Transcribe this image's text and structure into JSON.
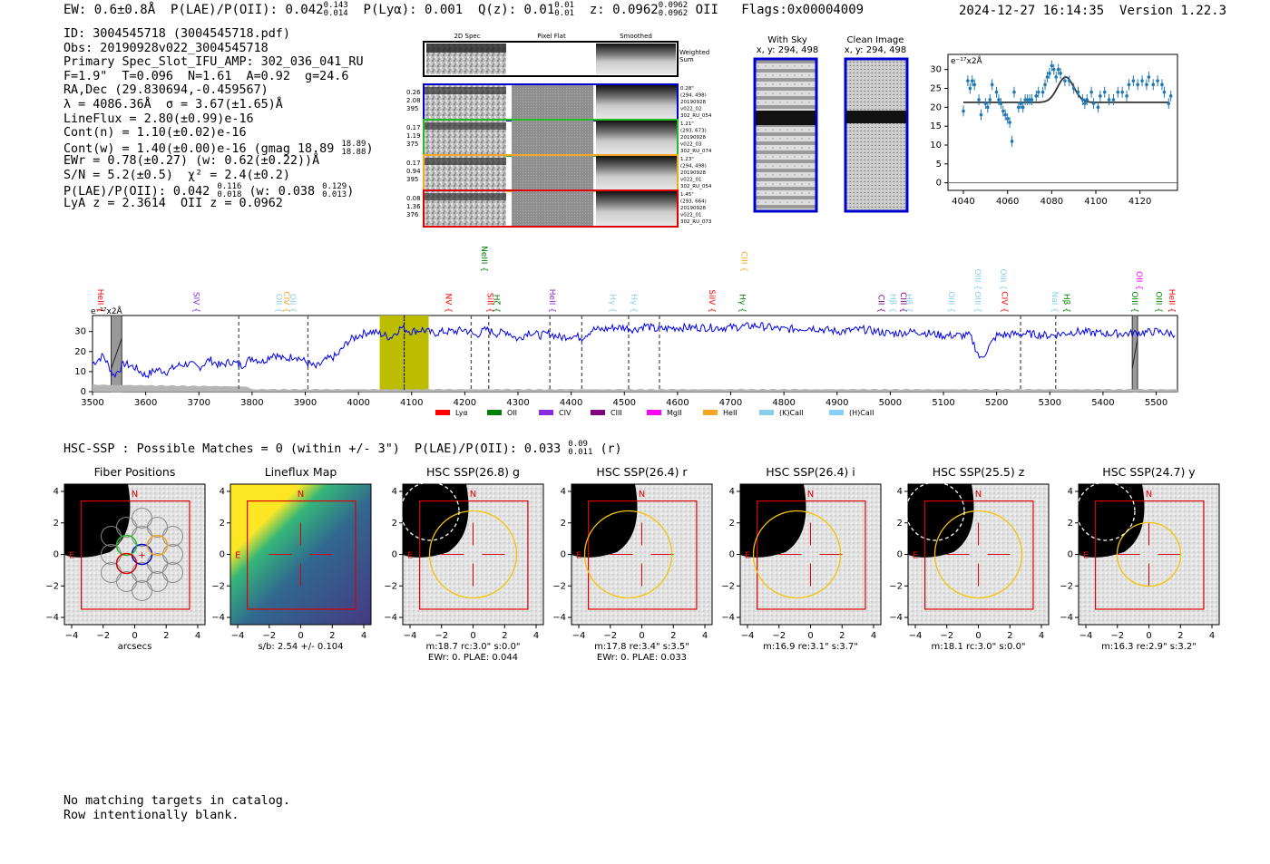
{
  "header": {
    "ew": "EW: 0.6±0.8Å",
    "plae_label": "P(LAE)/P(OII): 0.042",
    "plae_hi": "0.143",
    "plae_lo": "0.014",
    "plya": "P(Lyα): 0.001",
    "qz_label": "Q(z): 0.01",
    "qz_hi": "0.01",
    "qz_lo": "0.01",
    "z_label": "z: 0.0962",
    "z_hi": "0.0962",
    "z_lo": "0.0962",
    "z_line": "OII",
    "flags": "Flags:0x00004009",
    "datetime": "2024-12-27 16:14:35",
    "version": "Version 1.22.3"
  },
  "info": {
    "id": "ID: 3004545718 (3004545718.pdf)",
    "obs": "Obs: 20190928v022_3004545718",
    "primary": "Primary Spec_Slot_IFU_AMP: 302_036_041_RU",
    "params": "F=1.9\"  T=0.096  N=1.61  A=0.92  g=24.6",
    "radec": "RA,Dec (29.830694,-0.459567)",
    "lambda": "λ = 4086.36Å  σ = 3.67(±1.65)Å",
    "lineflux": "LineFlux = 2.80(±0.99)e-16",
    "contn": "Cont(n) = 1.10(±0.02)e-16",
    "contw": "Cont(w) = 1.40(±0.00)e-16 (gmag 18.89",
    "contw_hi": "18.89",
    "contw_lo": "18.88",
    "ewr": "EWr = 0.78(±0.27) (w: 0.62(±0.22))Å",
    "sn": "S/N = 5.2(±0.5)  χ² = 2.4(±0.2)",
    "plae": "P(LAE)/P(OII): 0.042",
    "plae_hi": "0.116",
    "plae_lo": "0.018",
    "plae_w": "(w: 0.038",
    "plae_w_hi": "0.129",
    "plae_w_lo": "0.013",
    "z": "LyA z = 2.3614  OII z = 0.0962"
  },
  "cutouts": {
    "col_2d": "2D Spec",
    "col_flat": "Pixel Flat",
    "col_smooth": "Smoothed",
    "weighted_sum": "Weighted\nSum",
    "rows": [
      {
        "v1": "0.26",
        "v2": "2.08",
        "v3": "395",
        "color": "#0000cc",
        "sep": "0.28\"",
        "xy": "(294, 498)",
        "date": "20190928",
        "shot": "v022_02",
        "amp": "302_RU_054"
      },
      {
        "v1": "0.17",
        "v2": "1.19",
        "v3": "375",
        "color": "#22bb22",
        "sep": "1.21\"",
        "xy": "(293, 673)",
        "date": "20190928",
        "shot": "v022_03",
        "amp": "302_RU_074"
      },
      {
        "v1": "0.17",
        "v2": "0.94",
        "v3": "395",
        "color": "#f5a623",
        "sep": "1.23\"",
        "xy": "(294, 498)",
        "date": "20190928",
        "shot": "v022_01",
        "amp": "302_RU_054"
      },
      {
        "v1": "0.08",
        "v2": "1.36",
        "v3": "376",
        "color": "#dd0000",
        "sep": "1.45\"",
        "xy": "(293, 664)",
        "date": "20190928",
        "shot": "v022_01",
        "amp": "302_RU_073"
      }
    ],
    "with_sky_title": "With Sky",
    "with_sky_xy": "x, y: 294, 498",
    "clean_title": "Clean Image",
    "clean_xy": "x, y: 294, 498"
  },
  "chart_data": [
    {
      "type": "scatter",
      "name": "zoom-fit",
      "ylabel": "e⁻¹⁷x2Å",
      "xlim": [
        4033,
        4137
      ],
      "ylim": [
        -2,
        34
      ],
      "xticks": [
        4040,
        4060,
        4080,
        4100,
        4120
      ],
      "yticks": [
        0,
        5,
        10,
        15,
        20,
        25,
        30
      ],
      "fit": {
        "continuum": 21.3,
        "center": 4086.36,
        "sigma": 3.67,
        "amplitude": 6.7,
        "range": [
          4040,
          4133
        ]
      },
      "points": [
        [
          4040,
          19
        ],
        [
          4042,
          27
        ],
        [
          4043,
          25
        ],
        [
          4044,
          27
        ],
        [
          4045,
          26
        ],
        [
          4047,
          22
        ],
        [
          4048,
          18
        ],
        [
          4050,
          21
        ],
        [
          4051,
          20
        ],
        [
          4052,
          22
        ],
        [
          4053,
          26
        ],
        [
          4055,
          24
        ],
        [
          4056,
          22
        ],
        [
          4057,
          21
        ],
        [
          4058,
          19
        ],
        [
          4059,
          18
        ],
        [
          4060,
          17
        ],
        [
          4061,
          16
        ],
        [
          4062,
          11
        ],
        [
          4063,
          24
        ],
        [
          4065,
          20
        ],
        [
          4066,
          21
        ],
        [
          4067,
          20
        ],
        [
          4068,
          22
        ],
        [
          4069,
          22
        ],
        [
          4070,
          22
        ],
        [
          4071,
          22
        ],
        [
          4073,
          23
        ],
        [
          4074,
          24
        ],
        [
          4076,
          24
        ],
        [
          4077,
          26
        ],
        [
          4078,
          28
        ],
        [
          4079,
          29
        ],
        [
          4080,
          31
        ],
        [
          4081,
          30
        ],
        [
          4082,
          28
        ],
        [
          4083,
          30
        ],
        [
          4084,
          29
        ],
        [
          4086,
          27
        ],
        [
          4088,
          27
        ],
        [
          4090,
          25
        ],
        [
          4092,
          24
        ],
        [
          4094,
          22
        ],
        [
          4095,
          21
        ],
        [
          4096,
          22
        ],
        [
          4098,
          24
        ],
        [
          4099,
          21
        ],
        [
          4101,
          20
        ],
        [
          4102,
          23
        ],
        [
          4104,
          24
        ],
        [
          4106,
          22
        ],
        [
          4108,
          22
        ],
        [
          4110,
          24
        ],
        [
          4112,
          24
        ],
        [
          4114,
          23
        ],
        [
          4115,
          26
        ],
        [
          4117,
          27
        ],
        [
          4119,
          26
        ],
        [
          4121,
          27
        ],
        [
          4123,
          26
        ],
        [
          4124,
          28
        ],
        [
          4126,
          26
        ],
        [
          4128,
          27
        ],
        [
          4130,
          26
        ],
        [
          4131,
          24
        ],
        [
          4133,
          21
        ],
        [
          4134,
          23
        ]
      ]
    },
    {
      "type": "line",
      "name": "full-spectrum",
      "ylabel": "e⁻¹⁷x2Å",
      "xlim": [
        3500,
        5540
      ],
      "ylim": [
        0,
        38
      ],
      "xticks": [
        3500,
        3600,
        3700,
        3800,
        3900,
        4000,
        4100,
        4200,
        4300,
        4400,
        4500,
        4600,
        4700,
        4800,
        4900,
        5000,
        5100,
        5200,
        5300,
        5400,
        5500
      ],
      "yticks": [
        0,
        10,
        20,
        30
      ],
      "highlight": [
        4040,
        4132
      ],
      "line_marker": 4086,
      "masked": [
        [
          3535,
          3555
        ],
        [
          5455,
          5465
        ]
      ],
      "anchors": [
        [
          3500,
          14
        ],
        [
          3520,
          18
        ],
        [
          3540,
          8
        ],
        [
          3560,
          14
        ],
        [
          3580,
          12
        ],
        [
          3600,
          8
        ],
        [
          3620,
          11
        ],
        [
          3640,
          10
        ],
        [
          3660,
          13
        ],
        [
          3680,
          14
        ],
        [
          3700,
          12
        ],
        [
          3720,
          16
        ],
        [
          3740,
          13
        ],
        [
          3760,
          15
        ],
        [
          3780,
          13
        ],
        [
          3800,
          17
        ],
        [
          3820,
          15
        ],
        [
          3840,
          19
        ],
        [
          3860,
          16
        ],
        [
          3880,
          18
        ],
        [
          3900,
          15
        ],
        [
          3920,
          12
        ],
        [
          3940,
          16
        ],
        [
          3960,
          18
        ],
        [
          3980,
          25
        ],
        [
          4000,
          28
        ],
        [
          4020,
          30
        ],
        [
          4040,
          29
        ],
        [
          4060,
          27
        ],
        [
          4080,
          32
        ],
        [
          4100,
          30
        ],
        [
          4120,
          31
        ],
        [
          4140,
          29
        ],
        [
          4160,
          30
        ],
        [
          4180,
          30
        ],
        [
          4200,
          31
        ],
        [
          4220,
          28
        ],
        [
          4240,
          31
        ],
        [
          4260,
          29
        ],
        [
          4280,
          30
        ],
        [
          4300,
          26
        ],
        [
          4320,
          30
        ],
        [
          4340,
          28
        ],
        [
          4360,
          29
        ],
        [
          4380,
          27
        ],
        [
          4400,
          28
        ],
        [
          4420,
          27
        ],
        [
          4440,
          31
        ],
        [
          4460,
          31
        ],
        [
          4480,
          32
        ],
        [
          4500,
          32
        ],
        [
          4520,
          31
        ],
        [
          4540,
          33
        ],
        [
          4560,
          31
        ],
        [
          4600,
          32
        ],
        [
          4650,
          32
        ],
        [
          4700,
          32
        ],
        [
          4750,
          33
        ],
        [
          4800,
          31
        ],
        [
          4850,
          32
        ],
        [
          4900,
          30
        ],
        [
          4950,
          31
        ],
        [
          5000,
          29
        ],
        [
          5050,
          30
        ],
        [
          5100,
          28
        ],
        [
          5150,
          28
        ],
        [
          5170,
          16
        ],
        [
          5200,
          28
        ],
        [
          5250,
          29
        ],
        [
          5300,
          28
        ],
        [
          5350,
          30
        ],
        [
          5400,
          29
        ],
        [
          5450,
          29
        ],
        [
          5500,
          30
        ],
        [
          5530,
          29
        ]
      ],
      "legend": [
        {
          "label": "Lyα",
          "color": "#ff0000"
        },
        {
          "label": "OII",
          "color": "#008000"
        },
        {
          "label": "CIV",
          "color": "#8a2be2"
        },
        {
          "label": "CIII",
          "color": "#800080"
        },
        {
          "label": "MgII",
          "color": "#ff00ff"
        },
        {
          "label": "HeII",
          "color": "#f5a623"
        },
        {
          "label": "(K)CaII",
          "color": "#87ceeb"
        },
        {
          "label": "(H)CaII",
          "color": "#87cefa"
        }
      ],
      "line_labels": [
        {
          "text": "HeII",
          "x": 3510,
          "row": 2,
          "color": "#ff0000"
        },
        {
          "text": "SIV",
          "x": 3690,
          "row": 2,
          "color": "#8a2be2"
        },
        {
          "text": "OII",
          "x": 3845,
          "row": 2,
          "color": "#87ceeb"
        },
        {
          "text": "CIV",
          "x": 3860,
          "row": 2,
          "color": "#f5a623"
        },
        {
          "text": "OII",
          "x": 3872,
          "row": 2,
          "color": "#87ceeb"
        },
        {
          "text": "NV",
          "x": 4164,
          "row": 2,
          "color": "#ff0000"
        },
        {
          "text": "SiII",
          "x": 4243,
          "row": 2,
          "color": "#ff0000"
        },
        {
          "text": "Hζ",
          "x": 4255,
          "row": 2,
          "color": "#008000"
        },
        {
          "text": "NeIII",
          "x": 4232,
          "row": 0,
          "color": "#008000"
        },
        {
          "text": "HeII",
          "x": 4360,
          "row": 2,
          "color": "#8a2be2"
        },
        {
          "text": "Hγ",
          "x": 4473,
          "row": 2,
          "color": "#87ceeb"
        },
        {
          "text": "Hγ",
          "x": 4513,
          "row": 2,
          "color": "#87ceeb"
        },
        {
          "text": "SiIV",
          "x": 4660,
          "row": 2,
          "color": "#ff0000"
        },
        {
          "text": "CIII",
          "x": 4720,
          "row": 0,
          "color": "#f5a623"
        },
        {
          "text": "Hγ",
          "x": 4717,
          "row": 2,
          "color": "#008000"
        },
        {
          "text": "CII",
          "x": 4978,
          "row": 2,
          "color": "#800080"
        },
        {
          "text": "Hβ",
          "x": 5000,
          "row": 2,
          "color": "#87ceeb"
        },
        {
          "text": "CIII",
          "x": 5020,
          "row": 2,
          "color": "#800080"
        },
        {
          "text": "Hβ",
          "x": 5030,
          "row": 2,
          "color": "#87ceeb"
        },
        {
          "text": "OIII",
          "x": 5110,
          "row": 2,
          "color": "#87ceeb"
        },
        {
          "text": "OIII",
          "x": 5160,
          "row": 1,
          "color": "#87ceeb"
        },
        {
          "text": "OIII",
          "x": 5160,
          "row": 2,
          "color": "#87ceeb"
        },
        {
          "text": "OIII",
          "x": 5207,
          "row": 1,
          "color": "#87ceeb"
        },
        {
          "text": "CIV",
          "x": 5210,
          "row": 2,
          "color": "#ff0000"
        },
        {
          "text": "NaI",
          "x": 5305,
          "row": 2,
          "color": "#87ceeb"
        },
        {
          "text": "Hβ",
          "x": 5327,
          "row": 2,
          "color": "#008000"
        },
        {
          "text": "OII",
          "x": 5463,
          "row": 1,
          "color": "#ff00ff"
        },
        {
          "text": "OIII",
          "x": 5455,
          "row": 2,
          "color": "#008000"
        },
        {
          "text": "OIII",
          "x": 5500,
          "row": 2,
          "color": "#008000"
        },
        {
          "text": "HeII",
          "x": 5525,
          "row": 2,
          "color": "#ff0000"
        }
      ],
      "dashed_lines": [
        3775,
        3905,
        4086,
        4212,
        4245,
        4360,
        4420,
        4508,
        4566,
        5245,
        5311
      ]
    }
  ],
  "hsc": {
    "summary": "HSC-SSP : Possible Matches = 0 (within +/- 3\")  P(LAE)/P(OII): 0.033",
    "summary_hi": "0.09",
    "summary_lo": "0.011",
    "summary_band": "(r)",
    "axis_ticks_x": [
      "−4",
      "−2",
      "0",
      "2",
      "4"
    ],
    "axis_ticks_y": [
      "4",
      "2",
      "0",
      "−2",
      "−4"
    ],
    "panels": [
      {
        "title": "Fiber Positions",
        "caption1": "arcsecs",
        "caption2": ""
      },
      {
        "title": "Lineflux Map",
        "caption1": "s/b: 2.54 +/- 0.104",
        "caption2": ""
      },
      {
        "title": "HSC SSP(26.8) g",
        "caption1": "m:18.7 rc:3.0\"  s:0.0\"",
        "caption2": "EWr: 0, PLAE: 0.044"
      },
      {
        "title": "HSC SSP(26.4) r",
        "caption1": "m:17.8  re:3.4\"  s:3.5\"",
        "caption2": "EWr: 0, PLAE: 0.033"
      },
      {
        "title": "HSC SSP(26.4) i",
        "caption1": "m:16.9  re:3.1\"  s:3.7\"",
        "caption2": ""
      },
      {
        "title": "HSC SSP(25.5) z",
        "caption1": "m:18.1 rc:3.0\"  s:0.0\"",
        "caption2": ""
      },
      {
        "title": "HSC SSP(24.7) y",
        "caption1": "m:16.3  re:2.9\"  s:3.2\"",
        "caption2": ""
      }
    ],
    "n_label": "N",
    "e_label": "E"
  },
  "footer": {
    "line1": "No matching targets in catalog.",
    "line2": "Row intentionally blank."
  }
}
